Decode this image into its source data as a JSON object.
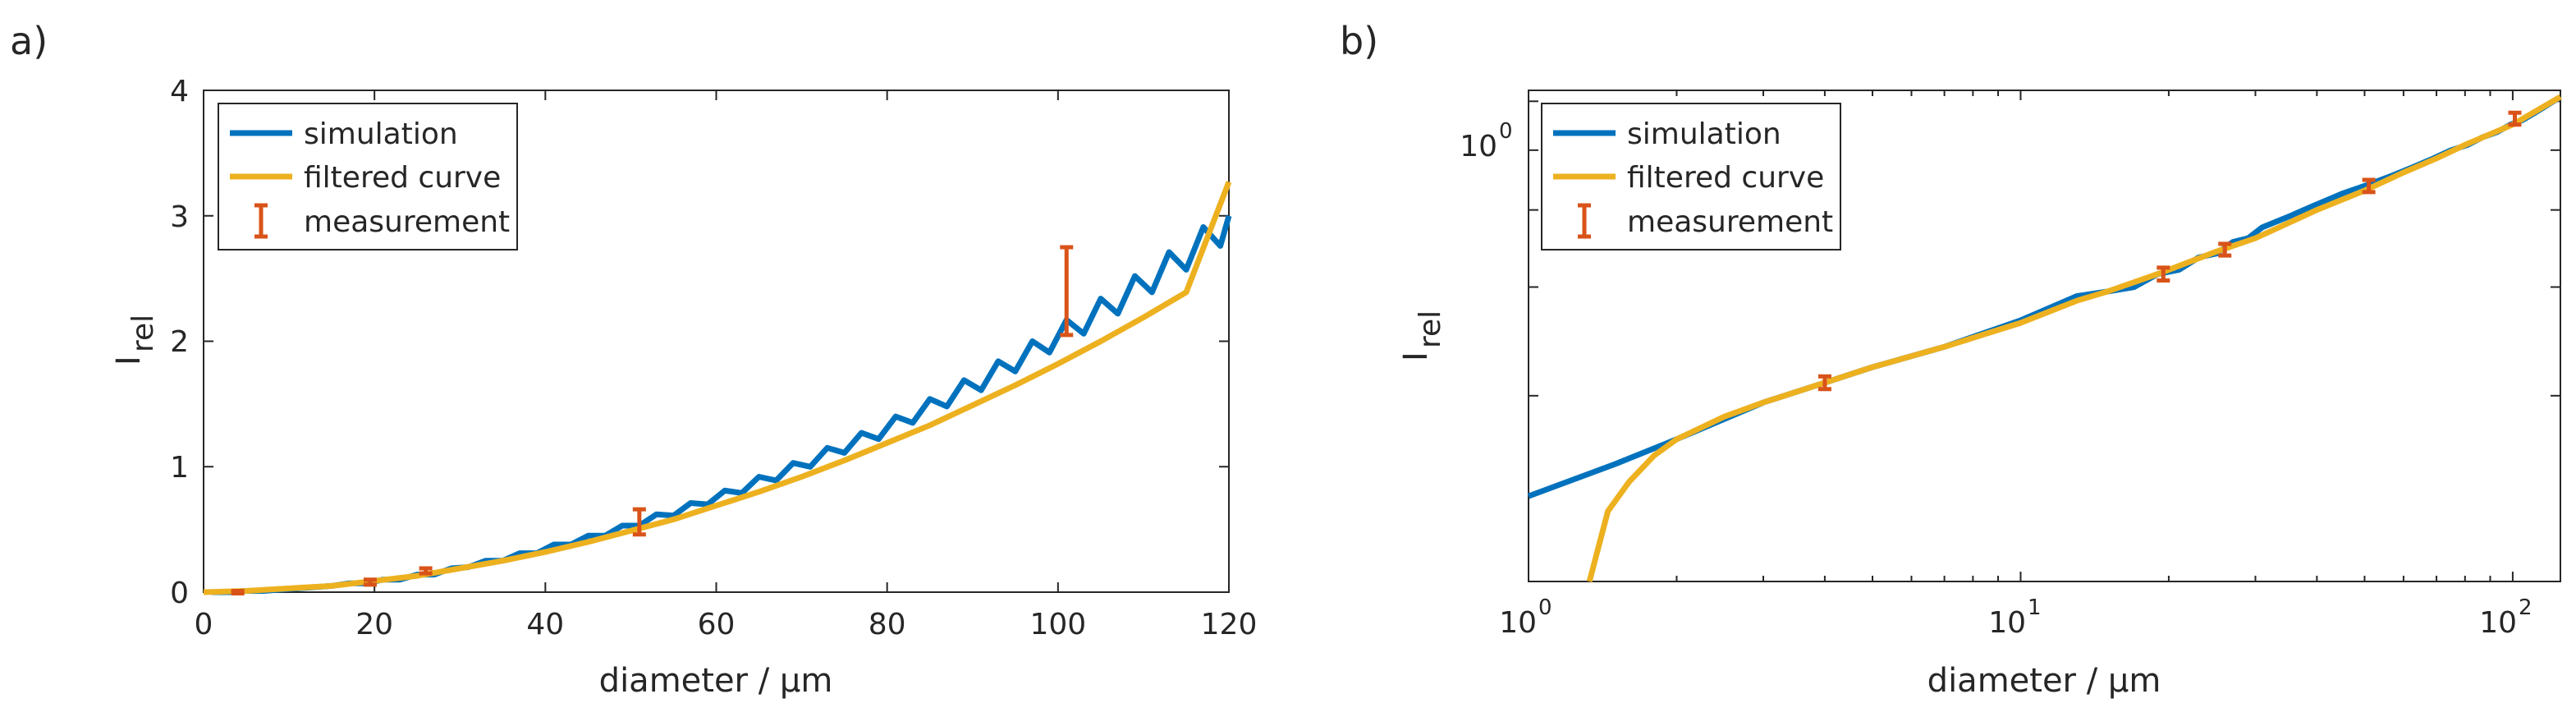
{
  "chart_data": [
    {
      "panel_label": "a)",
      "type": "line",
      "xscale": "linear",
      "yscale": "linear",
      "xlabel": "diameter / µm",
      "ylabel": "I",
      "ylabel_sub": "rel",
      "xlim": [
        0,
        120
      ],
      "ylim": [
        0,
        4
      ],
      "xticks": [
        0,
        20,
        40,
        60,
        80,
        100,
        120
      ],
      "xtick_labels": [
        "0",
        "20",
        "40",
        "60",
        "80",
        "100",
        "120"
      ],
      "yticks": [
        0,
        1,
        2,
        3,
        4
      ],
      "ytick_labels": [
        "0",
        "1",
        "2",
        "3",
        "4"
      ],
      "legend_position": "top-left",
      "series": [
        {
          "name": "simulation",
          "color": "#0072bd",
          "x": [
            1,
            3,
            5,
            7,
            9,
            11,
            13,
            15,
            17,
            19,
            21,
            23,
            25,
            27,
            29,
            31,
            33,
            35,
            37,
            39,
            41,
            43,
            45,
            47,
            49,
            51,
            53,
            55,
            57,
            59,
            61,
            63,
            65,
            67,
            69,
            71,
            73,
            75,
            77,
            79,
            81,
            83,
            85,
            87,
            89,
            91,
            93,
            95,
            97,
            99,
            101,
            103,
            105,
            107,
            109,
            111,
            113,
            115,
            117,
            119,
            120
          ],
          "y": [
            0.0,
            0.0,
            0.01,
            0.01,
            0.02,
            0.03,
            0.04,
            0.05,
            0.07,
            0.07,
            0.1,
            0.1,
            0.14,
            0.14,
            0.19,
            0.2,
            0.25,
            0.25,
            0.31,
            0.31,
            0.38,
            0.38,
            0.45,
            0.45,
            0.53,
            0.53,
            0.62,
            0.61,
            0.71,
            0.7,
            0.81,
            0.79,
            0.92,
            0.89,
            1.03,
            1.0,
            1.15,
            1.11,
            1.27,
            1.22,
            1.4,
            1.35,
            1.54,
            1.48,
            1.69,
            1.61,
            1.84,
            1.76,
            2.0,
            1.91,
            2.17,
            2.06,
            2.34,
            2.22,
            2.52,
            2.39,
            2.71,
            2.57,
            2.91,
            2.76,
            3.0
          ]
        },
        {
          "name": "filtered curve",
          "color": "#edb120",
          "x": [
            0,
            5,
            10,
            15,
            20,
            25,
            30,
            35,
            40,
            45,
            50,
            55,
            60,
            65,
            70,
            75,
            80,
            85,
            90,
            95,
            100,
            105,
            110,
            115,
            120
          ],
          "y": [
            0.0,
            0.01,
            0.03,
            0.05,
            0.09,
            0.13,
            0.19,
            0.25,
            0.32,
            0.4,
            0.49,
            0.58,
            0.69,
            0.8,
            0.92,
            1.05,
            1.19,
            1.33,
            1.49,
            1.65,
            1.82,
            2.0,
            2.19,
            2.39,
            3.27
          ]
        }
      ],
      "errorbars": {
        "name": "measurement",
        "color": "#d95319",
        "x": [
          4,
          19.5,
          26,
          51,
          101
        ],
        "y": [
          0.0,
          0.08,
          0.17,
          0.56,
          2.4
        ],
        "err": [
          0.01,
          0.02,
          0.02,
          0.1,
          0.35
        ]
      }
    },
    {
      "panel_label": "b)",
      "type": "line",
      "xscale": "log",
      "yscale": "log",
      "xlabel": "diameter / µm",
      "ylabel": "I",
      "ylabel_sub": "rel",
      "xlim": [
        1,
        125
      ],
      "ylim": [
        0.2,
        1.25
      ],
      "xticks": [
        1,
        10,
        100
      ],
      "xtick_labels": [
        {
          "base": "10",
          "exp": "0"
        },
        {
          "base": "10",
          "exp": "1"
        },
        {
          "base": "10",
          "exp": "2"
        }
      ],
      "yticks": [
        0.2,
        0.4,
        0.6,
        0.8,
        1.0,
        1.2
      ],
      "ytick_labels": [
        "",
        "",
        "",
        "",
        "10^0",
        ""
      ],
      "ytick_label_main": {
        "base": "10",
        "exp": "0"
      },
      "legend_position": "top-left",
      "series": [
        {
          "name": "simulation",
          "color": "#0072bd",
          "x": [
            1,
            1.5,
            2,
            3,
            4,
            5,
            7,
            10,
            13,
            15,
            17,
            19,
            21,
            23,
            25,
            27,
            29,
            31,
            35,
            39,
            45,
            51,
            57,
            63,
            69,
            75,
            81,
            87,
            93,
            99,
            105,
            111,
            117,
            125
          ],
          "y": [
            0.275,
            0.31,
            0.34,
            0.39,
            0.42,
            0.445,
            0.48,
            0.53,
            0.58,
            0.59,
            0.6,
            0.63,
            0.64,
            0.67,
            0.68,
            0.71,
            0.72,
            0.75,
            0.78,
            0.81,
            0.85,
            0.88,
            0.91,
            0.94,
            0.97,
            1.0,
            1.02,
            1.05,
            1.07,
            1.1,
            1.12,
            1.15,
            1.18,
            1.22
          ]
        },
        {
          "name": "filtered curve",
          "color": "#edb120",
          "x": [
            1.33,
            1.45,
            1.6,
            1.8,
            2.0,
            2.5,
            3,
            4,
            5,
            7,
            10,
            13,
            15,
            19,
            25,
            30,
            40,
            50,
            60,
            70,
            80,
            100,
            125
          ],
          "y": [
            0.2,
            0.26,
            0.29,
            0.32,
            0.34,
            0.37,
            0.39,
            0.42,
            0.445,
            0.48,
            0.525,
            0.57,
            0.59,
            0.63,
            0.685,
            0.72,
            0.8,
            0.86,
            0.92,
            0.97,
            1.02,
            1.1,
            1.22
          ]
        }
      ],
      "errorbars": {
        "name": "measurement",
        "color": "#d95319",
        "x": [
          4,
          19.5,
          26,
          51,
          101
        ],
        "y": [
          0.42,
          0.63,
          0.69,
          0.875,
          1.125
        ],
        "err": [
          0.01,
          0.015,
          0.015,
          0.02,
          0.025
        ]
      }
    }
  ]
}
